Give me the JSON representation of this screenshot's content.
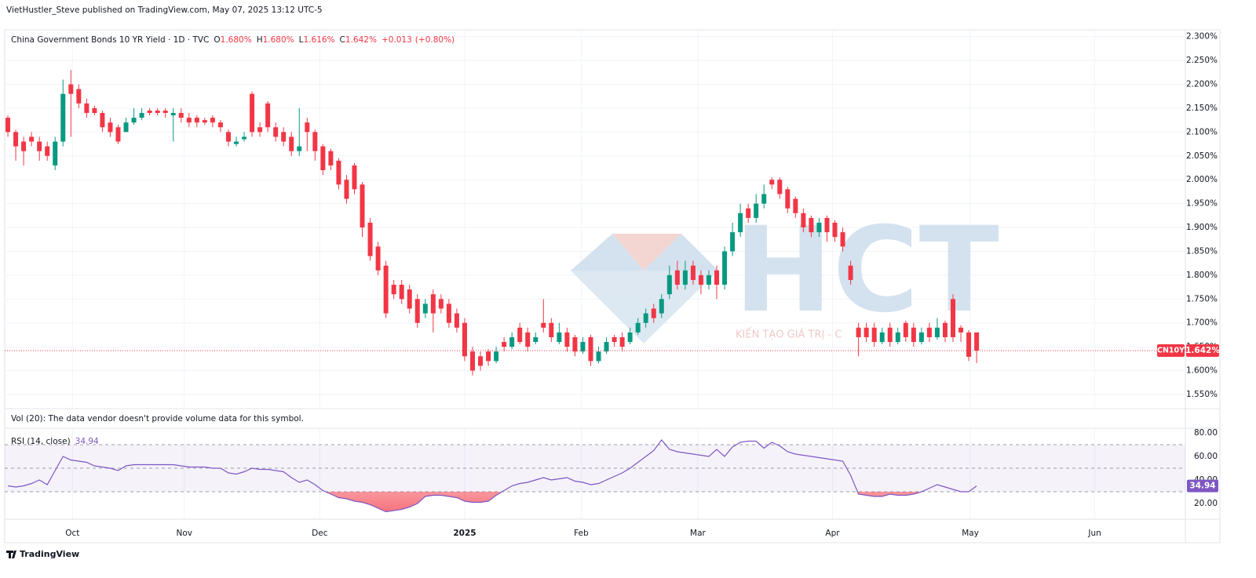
{
  "header": {
    "text": "VietHustler_Steve published on TradingView.com, May 07, 2025 13:12 UTC-5"
  },
  "footer": {
    "brand": "TradingView"
  },
  "watermark": {
    "logo": "HCT",
    "tagline": "KIẾN TẠO GIÁ TRỊ - C"
  },
  "chart_data": [
    {
      "type": "candlestick",
      "legend": {
        "symbol": "China Government Bonds 10 YR Yield · 1D · TVC",
        "ohlc": [
          {
            "key": "O",
            "value": 1.68,
            "label": "1.680%"
          },
          {
            "key": "H",
            "value": 1.68,
            "label": "1.680%"
          },
          {
            "key": "L",
            "value": 1.616,
            "label": "1.616%"
          },
          {
            "key": "C",
            "value": 1.642,
            "label": "1.642%"
          }
        ],
        "change": {
          "value": 0.013,
          "label": "+0.013"
        },
        "change_pct": {
          "value": 0.8,
          "label": "(+0.80%)"
        }
      },
      "symbol_short": "CN10Y",
      "last_price": {
        "value": 1.642,
        "label": "1.642%"
      },
      "volume_note": "Vol (20): The data vendor doesn't provide volume data for this symbol.",
      "up_color": "#089981",
      "down_color": "#f23645",
      "grid": true,
      "xlim": [
        -1,
        149.5
      ],
      "xticks": [
        {
          "value": 8.2,
          "label": "Oct"
        },
        {
          "value": 22.4,
          "label": "Nov"
        },
        {
          "value": 39.6,
          "label": "Dec"
        },
        {
          "value": 58,
          "label": "2025"
        },
        {
          "value": 72.8,
          "label": "Feb"
        },
        {
          "value": 87.6,
          "label": "Mar"
        },
        {
          "value": 104.7,
          "label": "Apr"
        },
        {
          "value": 122.2,
          "label": "May"
        },
        {
          "value": 138,
          "label": "Jun"
        }
      ],
      "ylim": [
        1.522,
        2.311
      ],
      "yticks": [
        {
          "value": 1.55,
          "label": "1.550%"
        },
        {
          "value": 1.6,
          "label": "1.600%"
        },
        {
          "value": 1.65,
          "label": "1.650%"
        },
        {
          "value": 1.7,
          "label": "1.700%"
        },
        {
          "value": 1.75,
          "label": "1.750%"
        },
        {
          "value": 1.8,
          "label": "1.800%"
        },
        {
          "value": 1.85,
          "label": "1.850%"
        },
        {
          "value": 1.9,
          "label": "1.900%"
        },
        {
          "value": 1.95,
          "label": "1.950%"
        },
        {
          "value": 2.0,
          "label": "2.000%"
        },
        {
          "value": 2.05,
          "label": "2.050%"
        },
        {
          "value": 2.1,
          "label": "2.100%"
        },
        {
          "value": 2.15,
          "label": "2.150%"
        },
        {
          "value": 2.2,
          "label": "2.200%"
        },
        {
          "value": 2.25,
          "label": "2.250%"
        },
        {
          "value": 2.3,
          "label": "2.300%"
        }
      ],
      "open": [
        2.13,
        2.1,
        2.08,
        2.09,
        2.08,
        2.07,
        2.03,
        2.08,
        2.2,
        2.19,
        2.16,
        2.15,
        2.14,
        2.12,
        2.11,
        2.1,
        2.12,
        2.13,
        2.145,
        2.145,
        2.145,
        2.135,
        2.14,
        2.13,
        2.13,
        2.125,
        2.13,
        2.12,
        2.1,
        2.075,
        2.085,
        2.18,
        2.11,
        2.16,
        2.11,
        2.1,
        2.09,
        2.06,
        2.12,
        2.1,
        2.07,
        2.06,
        2.04,
        2.0,
        2.03,
        1.99,
        1.91,
        1.86,
        1.82,
        1.78,
        1.78,
        1.77,
        1.75,
        1.72,
        1.76,
        1.75,
        1.74,
        1.72,
        1.7,
        1.64,
        1.63,
        1.64,
        1.62,
        1.66,
        1.65,
        1.69,
        1.68,
        1.66,
        1.7,
        1.7,
        1.66,
        1.68,
        1.67,
        1.64,
        1.67,
        1.62,
        1.64,
        1.67,
        1.67,
        1.66,
        1.68,
        1.7,
        1.73,
        1.72,
        1.76,
        1.81,
        1.78,
        1.82,
        1.8,
        1.78,
        1.81,
        1.78,
        1.85,
        1.89,
        1.94,
        1.92,
        1.95,
        2.0,
        2.0,
        1.98,
        1.96,
        1.93,
        1.92,
        1.89,
        1.92,
        1.91,
        1.89,
        1.82,
        1.69,
        1.69,
        1.69,
        1.66,
        1.69,
        1.66,
        1.7,
        1.69,
        1.66,
        1.69,
        1.67,
        1.7,
        1.75,
        1.69,
        1.68,
        1.68
      ],
      "high": [
        2.135,
        2.105,
        2.09,
        2.1,
        2.09,
        2.08,
        2.09,
        2.21,
        2.23,
        2.2,
        2.17,
        2.155,
        2.145,
        2.13,
        2.115,
        2.13,
        2.15,
        2.15,
        2.15,
        2.15,
        2.15,
        2.15,
        2.15,
        2.14,
        2.135,
        2.13,
        2.135,
        2.125,
        2.105,
        2.09,
        2.1,
        2.185,
        2.12,
        2.165,
        2.12,
        2.11,
        2.1,
        2.15,
        2.13,
        2.105,
        2.075,
        2.065,
        2.045,
        2.01,
        2.035,
        1.995,
        1.92,
        1.87,
        1.83,
        1.79,
        1.79,
        1.78,
        1.76,
        1.75,
        1.77,
        1.76,
        1.75,
        1.73,
        1.71,
        1.65,
        1.64,
        1.645,
        1.65,
        1.67,
        1.68,
        1.7,
        1.69,
        1.68,
        1.75,
        1.71,
        1.7,
        1.69,
        1.675,
        1.67,
        1.675,
        1.65,
        1.67,
        1.675,
        1.68,
        1.69,
        1.71,
        1.73,
        1.74,
        1.76,
        1.82,
        1.83,
        1.83,
        1.83,
        1.81,
        1.81,
        1.82,
        1.86,
        1.91,
        1.95,
        1.95,
        1.97,
        1.99,
        2.005,
        2.005,
        1.985,
        1.965,
        1.94,
        1.925,
        1.92,
        1.925,
        1.915,
        1.9,
        1.83,
        1.7,
        1.7,
        1.7,
        1.69,
        1.7,
        1.69,
        1.705,
        1.7,
        1.69,
        1.7,
        1.71,
        1.705,
        1.76,
        1.695,
        1.685,
        1.68
      ],
      "low": [
        2.09,
        2.04,
        2.03,
        2.07,
        2.04,
        2.04,
        2.02,
        2.07,
        2.09,
        2.15,
        2.13,
        2.135,
        2.1,
        2.09,
        2.075,
        2.1,
        2.115,
        2.125,
        2.135,
        2.135,
        2.13,
        2.08,
        2.12,
        2.11,
        2.11,
        2.115,
        2.11,
        2.1,
        2.07,
        2.07,
        2.08,
        2.09,
        2.09,
        2.1,
        2.08,
        2.07,
        2.05,
        2.05,
        2.06,
        2.04,
        2.01,
        2.02,
        1.98,
        1.95,
        1.97,
        1.88,
        1.83,
        1.8,
        1.71,
        1.75,
        1.74,
        1.72,
        1.69,
        1.71,
        1.68,
        1.72,
        1.69,
        1.68,
        1.62,
        1.59,
        1.6,
        1.61,
        1.615,
        1.64,
        1.645,
        1.655,
        1.64,
        1.655,
        1.68,
        1.66,
        1.655,
        1.64,
        1.63,
        1.635,
        1.61,
        1.615,
        1.635,
        1.65,
        1.64,
        1.655,
        1.675,
        1.69,
        1.7,
        1.71,
        1.75,
        1.77,
        1.77,
        1.78,
        1.76,
        1.77,
        1.75,
        1.77,
        1.84,
        1.88,
        1.91,
        1.91,
        1.94,
        1.98,
        1.96,
        1.93,
        1.92,
        1.89,
        1.88,
        1.88,
        1.87,
        1.87,
        1.85,
        1.78,
        1.63,
        1.66,
        1.65,
        1.655,
        1.65,
        1.655,
        1.66,
        1.65,
        1.655,
        1.66,
        1.665,
        1.66,
        1.66,
        1.66,
        1.62,
        1.616
      ],
      "close": [
        2.1,
        2.07,
        2.06,
        2.08,
        2.06,
        2.05,
        2.08,
        2.18,
        2.18,
        2.16,
        2.14,
        2.14,
        2.11,
        2.1,
        2.08,
        2.12,
        2.13,
        2.14,
        2.14,
        2.14,
        2.14,
        2.14,
        2.13,
        2.12,
        2.12,
        2.12,
        2.12,
        2.11,
        2.08,
        2.08,
        2.09,
        2.1,
        2.1,
        2.11,
        2.09,
        2.08,
        2.06,
        2.07,
        2.1,
        2.06,
        2.02,
        2.03,
        1.99,
        1.96,
        1.98,
        1.9,
        1.84,
        1.81,
        1.72,
        1.76,
        1.75,
        1.73,
        1.7,
        1.74,
        1.72,
        1.73,
        1.7,
        1.69,
        1.63,
        1.6,
        1.61,
        1.62,
        1.64,
        1.65,
        1.67,
        1.66,
        1.65,
        1.67,
        1.69,
        1.67,
        1.68,
        1.65,
        1.64,
        1.66,
        1.62,
        1.64,
        1.66,
        1.66,
        1.65,
        1.68,
        1.7,
        1.72,
        1.71,
        1.75,
        1.8,
        1.78,
        1.81,
        1.79,
        1.78,
        1.8,
        1.78,
        1.85,
        1.89,
        1.93,
        1.92,
        1.95,
        1.97,
        1.99,
        1.97,
        1.94,
        1.93,
        1.9,
        1.89,
        1.91,
        1.89,
        1.88,
        1.86,
        1.79,
        1.67,
        1.67,
        1.66,
        1.68,
        1.66,
        1.68,
        1.67,
        1.66,
        1.68,
        1.67,
        1.69,
        1.67,
        1.67,
        1.68,
        1.629,
        1.642
      ]
    },
    {
      "type": "line",
      "ylim": [
        8,
        82.67
      ],
      "yticks": [
        {
          "value": 20,
          "label": "20.00"
        },
        {
          "value": 40,
          "label": "40.00"
        },
        {
          "value": 60,
          "label": "60.00"
        },
        {
          "value": 80,
          "label": "80.00"
        }
      ],
      "bands": [
        30,
        50,
        70
      ],
      "band_color": "#7e57c2",
      "oversold_color": "#f23645",
      "series": [
        {
          "name": "RSI (14, close)",
          "color": "#7e57c2",
          "values": [
            35,
            34,
            35,
            37,
            40,
            36,
            48,
            60,
            57,
            56,
            55,
            52,
            51,
            50,
            48,
            52,
            53,
            53,
            53,
            53,
            53,
            53,
            52,
            51,
            51,
            51,
            50,
            50,
            46,
            45,
            47,
            50,
            49,
            49,
            48,
            47,
            42,
            38,
            40,
            36,
            31,
            28,
            25,
            24,
            22,
            21,
            19,
            16,
            13,
            14,
            15,
            17,
            20,
            26,
            27,
            27,
            26,
            25,
            22,
            21,
            21,
            22,
            27,
            31,
            35,
            37,
            38,
            40,
            42,
            40,
            41,
            42,
            39,
            38,
            36,
            37,
            40,
            43,
            46,
            50,
            55,
            60,
            65,
            74,
            66,
            64,
            63,
            62,
            61,
            60,
            66,
            60,
            68,
            72,
            73,
            73,
            67,
            72,
            69,
            64,
            62,
            61,
            60,
            59,
            58,
            57,
            56,
            44,
            28,
            27,
            26,
            26,
            28,
            27,
            27,
            28,
            30,
            33,
            36,
            34,
            32,
            30,
            30,
            34.94
          ]
        }
      ]
    }
  ]
}
